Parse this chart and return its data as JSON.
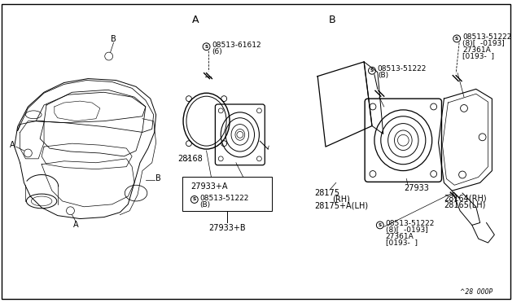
{
  "background_color": "#ffffff",
  "border_color": "#000000",
  "footer_text": "^28  000P",
  "section_A_label": "A",
  "section_B_label": "B",
  "line_color": "#000000",
  "text_color": "#000000",
  "font_size_small": 5.5,
  "font_size_med": 6.5,
  "font_size_part": 7.0,
  "font_size_section": 9
}
